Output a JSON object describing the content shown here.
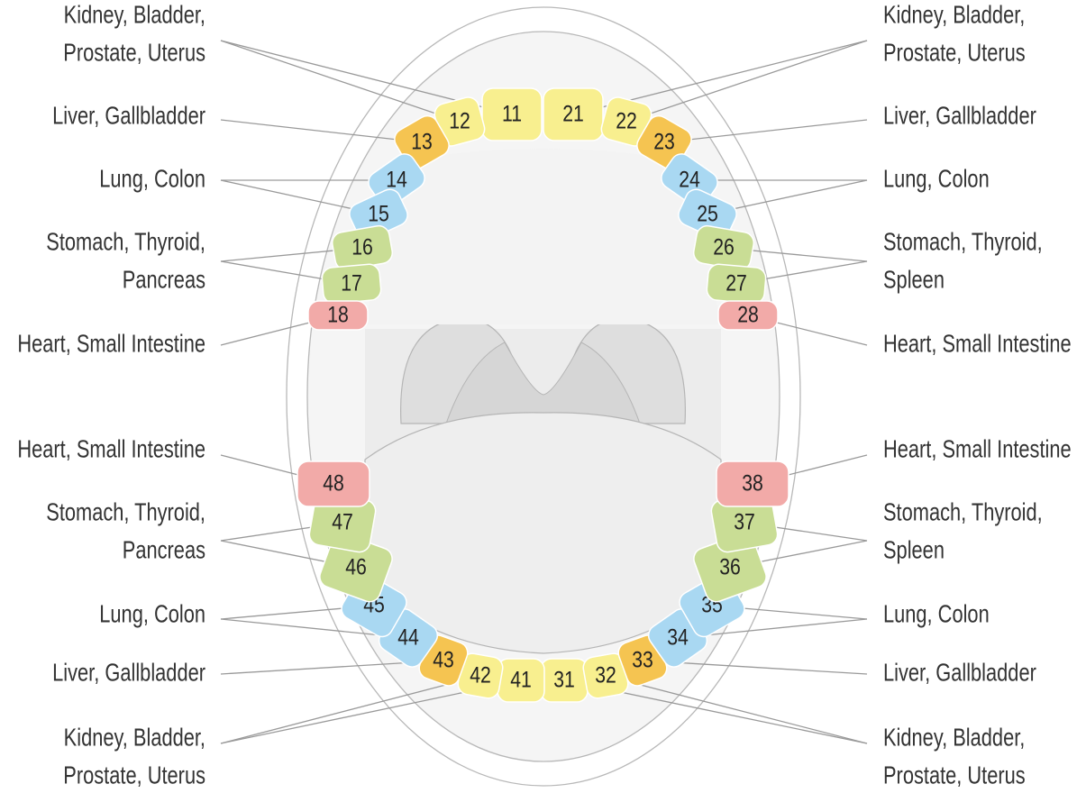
{
  "left_labels": [
    {
      "lines": [
        "Kidney, Bladder,",
        "Prostate, Uterus"
      ]
    },
    {
      "lines": [
        "Liver, Gallbladder"
      ]
    },
    {
      "lines": [
        "Lung, Colon"
      ]
    },
    {
      "lines": [
        "Stomach, Thyroid,",
        "Pancreas"
      ]
    },
    {
      "lines": [
        "Heart, Small Intestine"
      ]
    },
    {
      "lines": [
        "Heart, Small Intestine"
      ]
    },
    {
      "lines": [
        "Stomach, Thyroid,",
        "Pancreas"
      ]
    },
    {
      "lines": [
        "Lung, Colon"
      ]
    },
    {
      "lines": [
        "Liver, Gallbladder"
      ]
    },
    {
      "lines": [
        "Kidney, Bladder,",
        "Prostate, Uterus"
      ]
    }
  ],
  "right_labels": [
    {
      "lines": [
        "Kidney, Bladder,",
        "Prostate, Uterus"
      ]
    },
    {
      "lines": [
        "Liver, Gallbladder"
      ]
    },
    {
      "lines": [
        "Lung, Colon"
      ]
    },
    {
      "lines": [
        "Stomach, Thyroid,",
        "Spleen"
      ]
    },
    {
      "lines": [
        "Heart, Small Intestine"
      ]
    },
    {
      "lines": [
        "Heart, Small Intestine"
      ]
    },
    {
      "lines": [
        "Stomach, Thyroid,",
        "Spleen"
      ]
    },
    {
      "lines": [
        "Lung, Colon"
      ]
    },
    {
      "lines": [
        "Liver, Gallbladder"
      ]
    },
    {
      "lines": [
        "Kidney, Bladder,",
        "Prostate, Uterus"
      ]
    }
  ],
  "teeth": [
    "11",
    "12",
    "13",
    "14",
    "15",
    "16",
    "17",
    "18",
    "21",
    "22",
    "23",
    "24",
    "25",
    "26",
    "27",
    "28",
    "31",
    "32",
    "33",
    "34",
    "35",
    "36",
    "37",
    "38",
    "41",
    "42",
    "43",
    "44",
    "45",
    "46",
    "47",
    "48"
  ]
}
